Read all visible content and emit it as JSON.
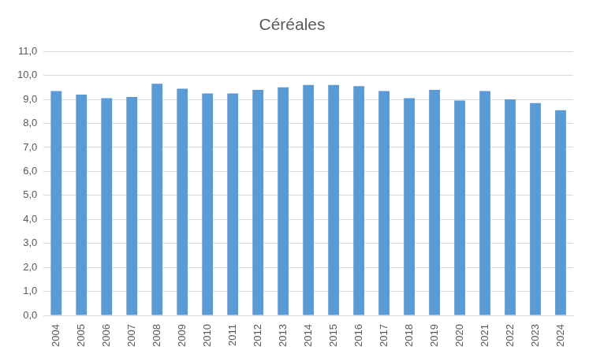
{
  "chart_data": {
    "type": "bar",
    "title": "Céréales",
    "categories": [
      "2004",
      "2005",
      "2006",
      "2007",
      "2008",
      "2009",
      "2010",
      "2011",
      "2012",
      "2013",
      "2014",
      "2015",
      "2016",
      "2017",
      "2018",
      "2019",
      "2020",
      "2021",
      "2022",
      "2023",
      "2024"
    ],
    "values": [
      9.35,
      9.2,
      9.05,
      9.1,
      9.65,
      9.45,
      9.25,
      9.25,
      9.4,
      9.5,
      9.6,
      9.6,
      9.55,
      9.35,
      9.05,
      9.4,
      8.95,
      9.35,
      9.0,
      8.85,
      8.55
    ],
    "color": "#5b9bd5",
    "ylim": [
      0,
      11
    ],
    "yticks": [
      {
        "value": 0,
        "label": "0,0"
      },
      {
        "value": 1,
        "label": "1,0"
      },
      {
        "value": 2,
        "label": "2,0"
      },
      {
        "value": 3,
        "label": "3,0"
      },
      {
        "value": 4,
        "label": "4,0"
      },
      {
        "value": 5,
        "label": "5,0"
      },
      {
        "value": 6,
        "label": "6,0"
      },
      {
        "value": 7,
        "label": "7,0"
      },
      {
        "value": 8,
        "label": "8,0"
      },
      {
        "value": 9,
        "label": "9,0"
      },
      {
        "value": 10,
        "label": "10,0"
      },
      {
        "value": 11,
        "label": "11,0"
      }
    ],
    "grid": true
  }
}
